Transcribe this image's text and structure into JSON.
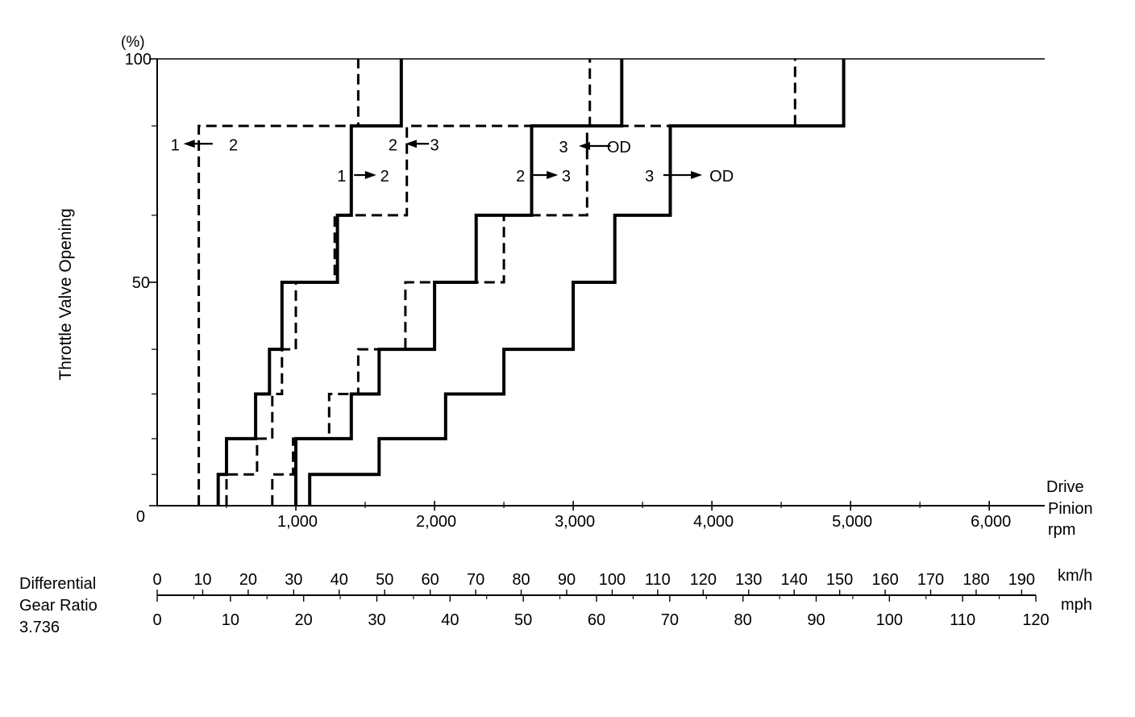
{
  "chart_data": {
    "type": "line",
    "ylabel": "Throttle Valve Opening",
    "yunit": "(%)",
    "xlabel_lines": [
      "Drive",
      "Pinion",
      "rpm"
    ],
    "xlim": [
      0,
      6400
    ],
    "ylim": [
      0,
      100
    ],
    "x_ticks": [
      {
        "value": 1000,
        "label": "1,000"
      },
      {
        "value": 2000,
        "label": "2,000"
      },
      {
        "value": 3000,
        "label": "3,000"
      },
      {
        "value": 4000,
        "label": "4,000"
      },
      {
        "value": 5000,
        "label": "5,000"
      },
      {
        "value": 6000,
        "label": "6,000"
      }
    ],
    "x_minor_ticks": [
      500,
      1500,
      2500,
      3500,
      4500,
      5500
    ],
    "y_ticks": [
      {
        "value": 0,
        "label": "0"
      },
      {
        "value": 50,
        "label": "50"
      },
      {
        "value": 100,
        "label": "100"
      }
    ],
    "y_minor_ticks": [
      7,
      15,
      25,
      35,
      65,
      85
    ],
    "series": [
      {
        "name": "1→2",
        "style": "solid",
        "points": [
          [
            440,
            0
          ],
          [
            440,
            7
          ],
          [
            500,
            7
          ],
          [
            500,
            15
          ],
          [
            710,
            15
          ],
          [
            710,
            25
          ],
          [
            810,
            25
          ],
          [
            810,
            35
          ],
          [
            900,
            35
          ],
          [
            900,
            50
          ],
          [
            1300,
            50
          ],
          [
            1300,
            65
          ],
          [
            1400,
            65
          ],
          [
            1400,
            85
          ],
          [
            1760,
            85
          ],
          [
            1760,
            100
          ]
        ]
      },
      {
        "name": "1←2",
        "style": "dashed",
        "points": [
          [
            300,
            0
          ],
          [
            300,
            85
          ],
          [
            1450,
            85
          ],
          [
            1450,
            100
          ]
        ]
      },
      {
        "name": "2→3",
        "style": "solid",
        "points": [
          [
            1000,
            0
          ],
          [
            1000,
            15
          ],
          [
            1400,
            15
          ],
          [
            1400,
            25
          ],
          [
            1600,
            25
          ],
          [
            1600,
            35
          ],
          [
            2000,
            35
          ],
          [
            2000,
            50
          ],
          [
            2300,
            50
          ],
          [
            2300,
            65
          ],
          [
            2700,
            65
          ],
          [
            2700,
            85
          ],
          [
            3350,
            85
          ],
          [
            3350,
            100
          ]
        ]
      },
      {
        "name": "2←3",
        "style": "dashed",
        "points": [
          [
            500,
            0
          ],
          [
            500,
            7
          ],
          [
            720,
            7
          ],
          [
            720,
            15
          ],
          [
            830,
            15
          ],
          [
            830,
            25
          ],
          [
            900,
            25
          ],
          [
            900,
            35
          ],
          [
            1000,
            35
          ],
          [
            1000,
            50
          ],
          [
            1280,
            50
          ],
          [
            1280,
            65
          ],
          [
            1800,
            65
          ],
          [
            1800,
            85
          ],
          [
            3120,
            85
          ],
          [
            3120,
            100
          ]
        ]
      },
      {
        "name": "3→OD",
        "style": "solid",
        "points": [
          [
            1100,
            0
          ],
          [
            1100,
            7
          ],
          [
            1600,
            7
          ],
          [
            1600,
            15
          ],
          [
            2080,
            15
          ],
          [
            2080,
            25
          ],
          [
            2500,
            25
          ],
          [
            2500,
            35
          ],
          [
            3000,
            35
          ],
          [
            3000,
            50
          ],
          [
            3300,
            50
          ],
          [
            3300,
            65
          ],
          [
            3700,
            65
          ],
          [
            3700,
            85
          ],
          [
            4950,
            85
          ],
          [
            4950,
            100
          ]
        ]
      },
      {
        "name": "3←OD",
        "style": "dashed",
        "points": [
          [
            830,
            0
          ],
          [
            830,
            7
          ],
          [
            980,
            7
          ],
          [
            980,
            15
          ],
          [
            1240,
            15
          ],
          [
            1240,
            25
          ],
          [
            1450,
            25
          ],
          [
            1450,
            35
          ],
          [
            1790,
            35
          ],
          [
            1790,
            50
          ],
          [
            2500,
            50
          ],
          [
            2500,
            65
          ],
          [
            3100,
            65
          ],
          [
            3100,
            85
          ],
          [
            4600,
            85
          ],
          [
            4600,
            100
          ]
        ]
      }
    ],
    "annotations": [
      {
        "text": "1",
        "x": 130,
        "y": 81
      },
      {
        "text": "2",
        "x": 550,
        "y": 81
      },
      {
        "text": "2",
        "x": 1700,
        "y": 81
      },
      {
        "text": "3",
        "x": 2000,
        "y": 81
      },
      {
        "text": "1",
        "x": 1330,
        "y": 74
      },
      {
        "text": "2",
        "x": 1640,
        "y": 74
      },
      {
        "text": "3",
        "x": 2930,
        "y": 80.5
      },
      {
        "text": "OD",
        "x": 3330,
        "y": 80.5
      },
      {
        "text": "2",
        "x": 2620,
        "y": 74
      },
      {
        "text": "3",
        "x": 2950,
        "y": 74
      },
      {
        "text": "3",
        "x": 3550,
        "y": 74
      },
      {
        "text": "OD",
        "x": 4070,
        "y": 74
      }
    ],
    "arrows": [
      {
        "x_from": 400,
        "x_to": 190,
        "y": 81
      },
      {
        "x_from": 1960,
        "x_to": 1790,
        "y": 81
      },
      {
        "x_from": 1420,
        "x_to": 1580,
        "y": 74
      },
      {
        "x_from": 3270,
        "x_to": 3040,
        "y": 80.5
      },
      {
        "x_from": 2710,
        "x_to": 2890,
        "y": 74
      },
      {
        "x_from": 3650,
        "x_to": 3930,
        "y": 74
      }
    ],
    "speed_scale": {
      "label_lines": [
        "Differential",
        "Gear Ratio",
        "3.736"
      ],
      "kmh_unit": "km/h",
      "mph_unit": "mph",
      "kmh_values": [
        0,
        10,
        20,
        30,
        40,
        50,
        60,
        70,
        80,
        90,
        100,
        110,
        120,
        130,
        140,
        150,
        160,
        170,
        180,
        190
      ],
      "kmh_labels": [
        "0",
        "10",
        "20",
        "30",
        "40",
        "50",
        "60",
        "70",
        "80",
        "90",
        "100",
        "110",
        "120",
        "130",
        "140",
        "150",
        "160",
        "170",
        "180",
        "190"
      ],
      "mph_values": [
        0,
        10,
        20,
        30,
        40,
        50,
        60,
        70,
        80,
        90,
        100,
        110,
        120
      ],
      "mph_labels": [
        "0",
        "10",
        "20",
        "30",
        "40",
        "50",
        "60",
        "70",
        "80",
        "90",
        "100",
        "110",
        "120"
      ],
      "mph_max": 120
    }
  }
}
